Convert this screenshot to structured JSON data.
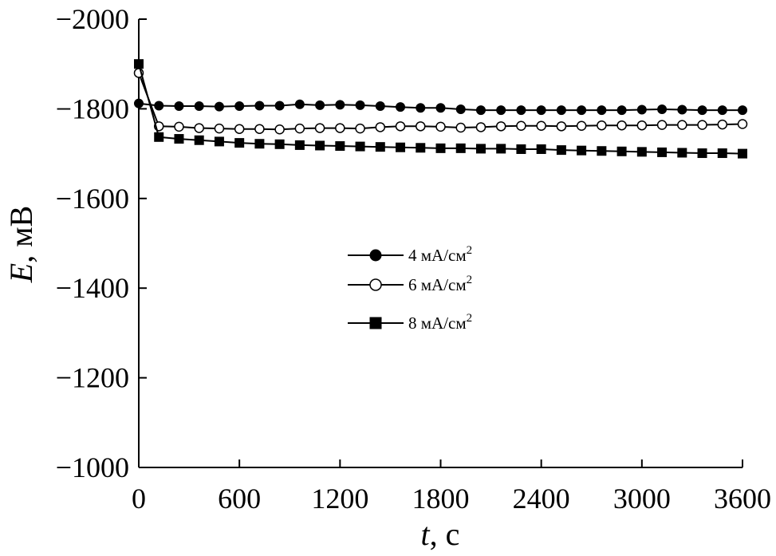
{
  "chart_data": {
    "type": "line",
    "title": "",
    "xlabel": {
      "symbol": "t",
      "unit": ", с"
    },
    "ylabel": {
      "symbol": "E",
      "unit": ", мВ"
    },
    "xlim": [
      0,
      3600
    ],
    "ylim": [
      -1000,
      -2000
    ],
    "y_axis_inverted": true,
    "x_ticks": [
      0,
      600,
      1200,
      1800,
      2400,
      3000,
      3600
    ],
    "y_ticks": [
      -2000,
      -1800,
      -1600,
      -1400,
      -1200,
      -1000
    ],
    "y_tick_labels": [
      "−2000",
      "−1800",
      "−1600",
      "−1400",
      "−1200",
      "−1000"
    ],
    "grid": false,
    "legend_position": "center",
    "colors": {
      "line": "#000000",
      "filled": "#000000",
      "hollow": "#ffffff"
    },
    "series": [
      {
        "name": "4 мА/см",
        "sup": "2",
        "marker": "filled-circle",
        "x": [
          0,
          120,
          240,
          360,
          480,
          600,
          720,
          840,
          960,
          1080,
          1200,
          1320,
          1440,
          1560,
          1680,
          1800,
          1920,
          2040,
          2160,
          2280,
          2400,
          2520,
          2640,
          2760,
          2880,
          3000,
          3120,
          3240,
          3360,
          3480,
          3600
        ],
        "y": [
          -1812,
          -1807,
          -1806,
          -1806,
          -1805,
          -1806,
          -1807,
          -1807,
          -1810,
          -1808,
          -1809,
          -1808,
          -1806,
          -1804,
          -1802,
          -1802,
          -1799,
          -1797,
          -1797,
          -1797,
          -1797,
          -1797,
          -1797,
          -1797,
          -1797,
          -1798,
          -1799,
          -1798,
          -1797,
          -1797,
          -1797
        ]
      },
      {
        "name": "6 мА/см",
        "sup": "2",
        "marker": "hollow-circle",
        "x": [
          0,
          120,
          240,
          360,
          480,
          600,
          720,
          840,
          960,
          1080,
          1200,
          1320,
          1440,
          1560,
          1680,
          1800,
          1920,
          2040,
          2160,
          2280,
          2400,
          2520,
          2640,
          2760,
          2880,
          3000,
          3120,
          3240,
          3360,
          3480,
          3600
        ],
        "y": [
          -1880,
          -1761,
          -1760,
          -1757,
          -1756,
          -1755,
          -1755,
          -1754,
          -1756,
          -1757,
          -1757,
          -1756,
          -1759,
          -1761,
          -1761,
          -1760,
          -1758,
          -1759,
          -1761,
          -1762,
          -1762,
          -1761,
          -1762,
          -1763,
          -1763,
          -1763,
          -1764,
          -1764,
          -1764,
          -1765,
          -1766
        ]
      },
      {
        "name": "8 мА/см",
        "sup": "2",
        "marker": "filled-square",
        "x": [
          0,
          120,
          240,
          360,
          480,
          600,
          720,
          840,
          960,
          1080,
          1200,
          1320,
          1440,
          1560,
          1680,
          1800,
          1920,
          2040,
          2160,
          2280,
          2400,
          2520,
          2640,
          2760,
          2880,
          3000,
          3120,
          3240,
          3360,
          3480,
          3600
        ],
        "y": [
          -1900,
          -1737,
          -1733,
          -1730,
          -1727,
          -1724,
          -1722,
          -1721,
          -1719,
          -1718,
          -1717,
          -1716,
          -1715,
          -1714,
          -1713,
          -1712,
          -1712,
          -1711,
          -1711,
          -1710,
          -1710,
          -1708,
          -1707,
          -1706,
          -1705,
          -1704,
          -1703,
          -1702,
          -1701,
          -1701,
          -1700
        ]
      }
    ]
  }
}
